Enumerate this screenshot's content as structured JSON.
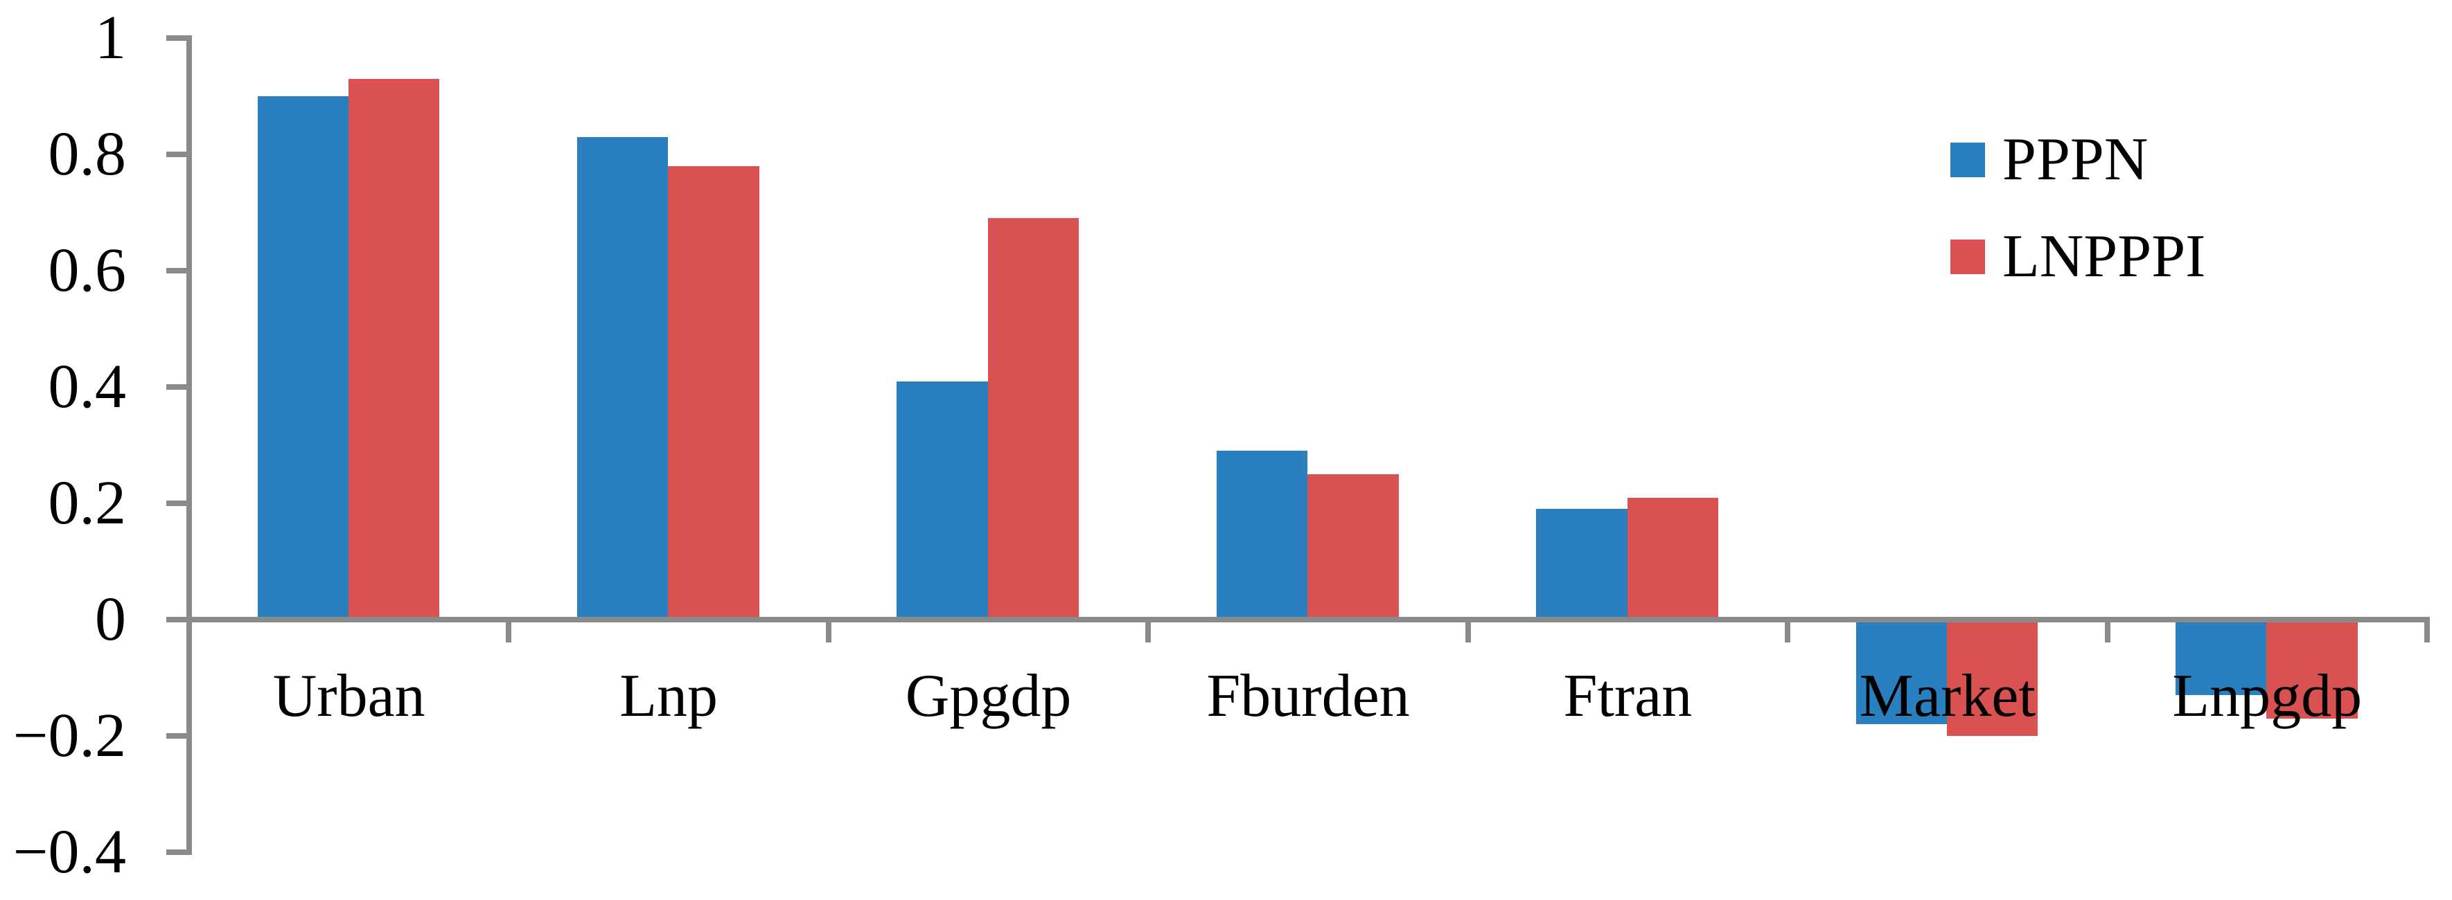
{
  "chart_data": {
    "type": "bar",
    "title": "",
    "xlabel": "",
    "ylabel": "",
    "categories": [
      "Urban",
      "Lnp",
      "Gpgdp",
      "Fburden",
      "Ftran",
      "Market",
      "Lnpgdp"
    ],
    "series": [
      {
        "name": "PPPN",
        "color": "#2A80BE",
        "values": [
          0.9,
          0.83,
          0.41,
          0.29,
          0.19,
          -0.18,
          -0.13
        ]
      },
      {
        "name": "LNPPPI",
        "color": "#D95151",
        "values": [
          0.93,
          0.78,
          0.69,
          0.25,
          0.21,
          -0.2,
          -0.17
        ]
      }
    ],
    "ylim": [
      -0.4,
      1.0
    ],
    "ytick_step": 0.2,
    "ytick_labels": [
      "1",
      "0.8",
      "0.6",
      "0.4",
      "0.2",
      "0",
      "−0.2",
      "−0.4"
    ],
    "grid": false,
    "legend_position": "top-right",
    "axis_color": "#8A8A8A",
    "text_color": "#000000",
    "background_color": "#FFFFFF"
  }
}
